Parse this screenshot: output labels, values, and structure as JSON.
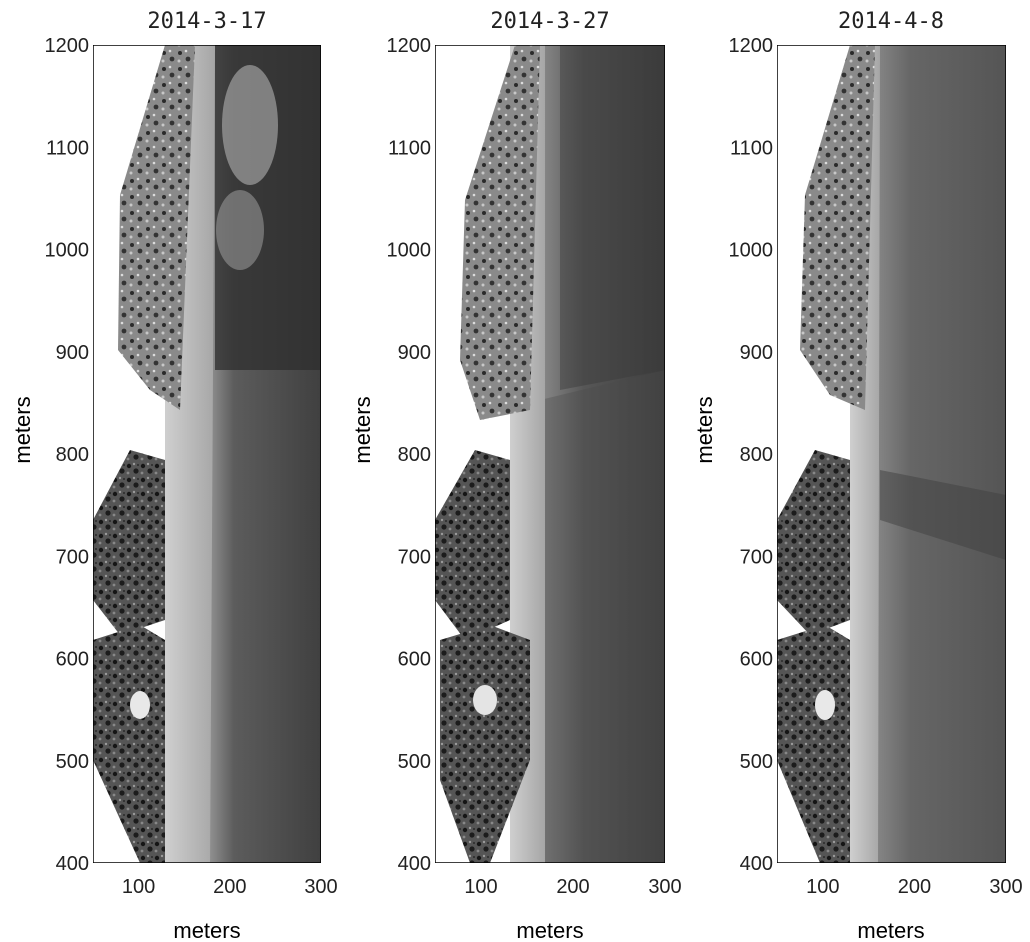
{
  "panels": [
    {
      "title": "2014-3-17",
      "xlabel": "meters",
      "ylabel": "meters"
    },
    {
      "title": "2014-3-27",
      "xlabel": "meters",
      "ylabel": "meters"
    },
    {
      "title": "2014-4-8",
      "xlabel": "meters",
      "ylabel": "meters"
    }
  ],
  "x_ticks": [
    "100",
    "200",
    "300"
  ],
  "x_tick_values": [
    100,
    200,
    300
  ],
  "y_ticks": [
    "400",
    "500",
    "600",
    "700",
    "800",
    "900",
    "1000",
    "1100",
    "1200"
  ],
  "y_tick_values": [
    400,
    500,
    600,
    700,
    800,
    900,
    1000,
    1100,
    1200
  ],
  "xlim": [
    50,
    300
  ],
  "ylim": [
    400,
    1200
  ],
  "colors": {
    "land_dark": "#1e1e1e",
    "land_mid": "#5a5a5a",
    "beach": "#d6d6d6",
    "surf": "#aaaaaa",
    "water": "#5e5e5e",
    "water_deep": "#383838",
    "frame": "#000000"
  }
}
